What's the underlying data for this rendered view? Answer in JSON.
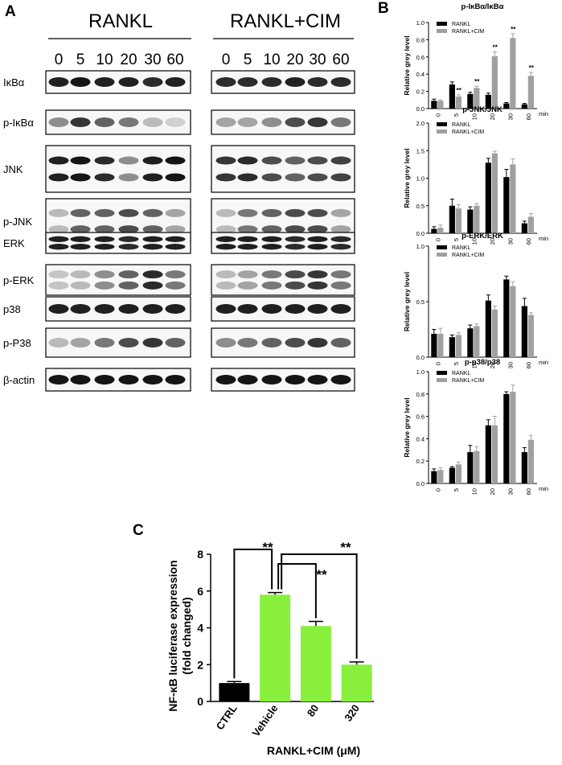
{
  "panels": {
    "a": "A",
    "b": "B",
    "c": "C"
  },
  "western_blot": {
    "groups": [
      "RANKL",
      "RANKL+CIM"
    ],
    "timepoints": [
      "0",
      "5",
      "10",
      "20",
      "30",
      "60"
    ],
    "rows": [
      {
        "label": "IκBα",
        "bands": 1,
        "rankl": [
          0.9,
          0.95,
          0.9,
          0.9,
          0.85,
          0.9
        ],
        "cim": [
          0.85,
          0.85,
          0.85,
          0.9,
          0.85,
          0.85
        ]
      },
      {
        "label": "p-IκBα",
        "bands": 1,
        "rankl": [
          0.4,
          0.8,
          0.6,
          0.5,
          0.2,
          0.1
        ],
        "cim": [
          0.3,
          0.3,
          0.4,
          0.7,
          0.8,
          0.5
        ]
      },
      {
        "label": "JNK",
        "bands": 2,
        "rankl": [
          0.9,
          0.95,
          0.85,
          0.4,
          0.9,
          0.95
        ],
        "cim": [
          0.8,
          0.85,
          0.7,
          0.6,
          0.7,
          0.75
        ]
      },
      {
        "label": "p-JNK",
        "bands": 2,
        "rankl": [
          0.2,
          0.6,
          0.6,
          0.7,
          0.6,
          0.3
        ],
        "cim": [
          0.2,
          0.5,
          0.6,
          0.7,
          0.7,
          0.3
        ]
      },
      {
        "label": "ERK",
        "bands": 2,
        "rankl": [
          0.9,
          0.9,
          0.9,
          0.85,
          0.9,
          0.9
        ],
        "cim": [
          0.9,
          0.9,
          0.9,
          0.85,
          0.9,
          0.85
        ]
      },
      {
        "label": "p-ERK",
        "bands": 2,
        "rankl": [
          0.15,
          0.2,
          0.4,
          0.6,
          0.85,
          0.5
        ],
        "cim": [
          0.2,
          0.3,
          0.5,
          0.7,
          0.8,
          0.5
        ]
      },
      {
        "label": "p38",
        "bands": 1,
        "rankl": [
          0.9,
          0.9,
          0.9,
          0.9,
          0.9,
          0.9
        ],
        "cim": [
          0.9,
          0.9,
          0.9,
          0.9,
          0.9,
          0.9
        ]
      },
      {
        "label": "p-P38",
        "bands": 1,
        "rankl": [
          0.2,
          0.3,
          0.5,
          0.7,
          0.8,
          0.6
        ],
        "cim": [
          0.4,
          0.5,
          0.6,
          0.7,
          0.8,
          0.6
        ]
      },
      {
        "label": "β-actin",
        "bands": 1,
        "rankl": [
          0.95,
          0.95,
          0.95,
          0.95,
          0.95,
          0.95
        ],
        "cim": [
          0.95,
          0.95,
          0.95,
          0.95,
          0.95,
          0.95
        ]
      }
    ]
  },
  "chart_data": [
    {
      "type": "bar",
      "title": "p-IκBα/IκBα",
      "ylabel": "Relative grey level",
      "xunit": "min",
      "categories": [
        "0",
        "5",
        "10",
        "20",
        "30",
        "60"
      ],
      "ylim": [
        0,
        1.0
      ],
      "yticks": [
        0.0,
        0.2,
        0.4,
        0.6,
        0.8,
        1.0
      ],
      "yticklabels": [
        "0.0",
        "0.2",
        "0.4",
        "0.6",
        "0.8",
        "1.0"
      ],
      "series": [
        {
          "name": "RANKL",
          "color": "#000000",
          "values": [
            0.09,
            0.28,
            0.17,
            0.16,
            0.06,
            0.05
          ],
          "errors": [
            0.02,
            0.03,
            0.02,
            0.02,
            0.01,
            0.01
          ]
        },
        {
          "name": "RANKL+CIM",
          "color": "#a0a0a0",
          "values": [
            0.09,
            0.14,
            0.24,
            0.61,
            0.82,
            0.38
          ],
          "errors": [
            0.01,
            0.02,
            0.02,
            0.05,
            0.05,
            0.04
          ]
        }
      ],
      "annotations": [
        {
          "category": "5",
          "text": "**"
        },
        {
          "category": "10",
          "text": "**"
        },
        {
          "category": "20",
          "text": "**"
        },
        {
          "category": "30",
          "text": "**"
        },
        {
          "category": "60",
          "text": "**"
        }
      ],
      "legend": "top-left"
    },
    {
      "type": "bar",
      "title": "p-JNK/JNK",
      "ylabel": "Relative grey level",
      "xunit": "min",
      "categories": [
        "0",
        "5",
        "10",
        "20",
        "30",
        "60"
      ],
      "ylim": [
        0,
        2.0
      ],
      "yticks": [
        0.0,
        0.5,
        1.0,
        1.5,
        2.0
      ],
      "yticklabels": [
        "0.0",
        "0.5",
        "1.0",
        "1.5",
        "2.0"
      ],
      "series": [
        {
          "name": "RANKL",
          "color": "#000000",
          "values": [
            0.08,
            0.5,
            0.43,
            1.28,
            1.02,
            0.18
          ],
          "errors": [
            0.04,
            0.12,
            0.05,
            0.08,
            0.14,
            0.04
          ]
        },
        {
          "name": "RANKL+CIM",
          "color": "#a0a0a0",
          "values": [
            0.1,
            0.45,
            0.5,
            1.45,
            1.25,
            0.3
          ],
          "errors": [
            0.05,
            0.07,
            0.04,
            0.04,
            0.1,
            0.06
          ]
        }
      ],
      "annotations": [],
      "legend": "top-left"
    },
    {
      "type": "bar",
      "title": "p-ERK/ERK",
      "ylabel": "Relative grey level",
      "xunit": "min",
      "categories": [
        "0",
        "5",
        "10",
        "20",
        "30",
        "60"
      ],
      "ylim": [
        0,
        1.0
      ],
      "yticks": [
        0.0,
        0.5,
        1.0
      ],
      "yticklabels": [
        "0.0",
        "0.5",
        "1.0"
      ],
      "series": [
        {
          "name": "RANKL",
          "color": "#000000",
          "values": [
            0.21,
            0.18,
            0.26,
            0.51,
            0.7,
            0.46
          ],
          "errors": [
            0.04,
            0.02,
            0.03,
            0.05,
            0.03,
            0.07
          ]
        },
        {
          "name": "RANKL+CIM",
          "color": "#a0a0a0",
          "values": [
            0.21,
            0.2,
            0.28,
            0.43,
            0.64,
            0.38
          ],
          "errors": [
            0.05,
            0.02,
            0.02,
            0.03,
            0.04,
            0.02
          ]
        }
      ],
      "annotations": [],
      "legend": "top-left"
    },
    {
      "type": "bar",
      "title": "p-p38/p38",
      "ylabel": "Relative grey level",
      "xunit": "min",
      "categories": [
        "0",
        "5",
        "10",
        "20",
        "30",
        "60"
      ],
      "ylim": [
        0,
        1.0
      ],
      "yticks": [
        0.0,
        0.2,
        0.4,
        0.6,
        0.8,
        1.0
      ],
      "yticklabels": [
        "0.0",
        "0.2",
        "0.4",
        "0.6",
        "0.8",
        "1.0"
      ],
      "series": [
        {
          "name": "RANKL",
          "color": "#000000",
          "values": [
            0.11,
            0.14,
            0.28,
            0.52,
            0.8,
            0.28
          ],
          "errors": [
            0.02,
            0.01,
            0.06,
            0.05,
            0.02,
            0.04
          ]
        },
        {
          "name": "RANKL+CIM",
          "color": "#a0a0a0",
          "values": [
            0.12,
            0.17,
            0.29,
            0.52,
            0.82,
            0.39
          ],
          "errors": [
            0.02,
            0.02,
            0.04,
            0.08,
            0.06,
            0.04
          ]
        }
      ],
      "annotations": [],
      "legend": "top-left"
    },
    {
      "type": "bar",
      "title": "",
      "ylabel": "NF-κB luciferase expression\n(fold changed)",
      "xlabel": "RANKL+CIM (μM)",
      "categories": [
        "CTRL",
        "Vehicle",
        "80",
        "320"
      ],
      "ylim": [
        0,
        8
      ],
      "yticks": [
        0,
        2,
        4,
        6,
        8
      ],
      "yticklabels": [
        "0",
        "2",
        "4",
        "6",
        "8"
      ],
      "series": [
        {
          "name": "",
          "values": [
            1.0,
            5.8,
            4.1,
            2.0
          ],
          "errors": [
            0.08,
            0.12,
            0.25,
            0.15
          ],
          "colors": [
            "#000000",
            "#88f03c",
            "#88f03c",
            "#88f03c"
          ]
        }
      ],
      "significance": [
        {
          "from": "CTRL",
          "to": "Vehicle",
          "text": "**"
        },
        {
          "from": "Vehicle",
          "to": "80",
          "text": "**"
        },
        {
          "from": "Vehicle",
          "to": "320",
          "text": "**"
        }
      ]
    }
  ]
}
